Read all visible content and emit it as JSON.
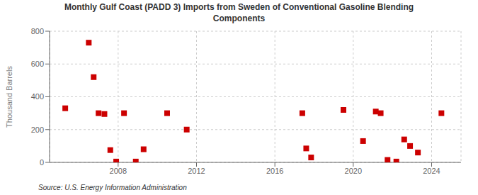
{
  "chart_data": {
    "type": "scatter",
    "title": "Monthly Gulf Coast (PADD 3) Imports from Sweden of Conventional Gasoline Blending\nComponents",
    "ylabel": "Thousand Barrels",
    "annotations": [
      "Source: U.S. Energy Information Administration"
    ],
    "x": [
      2005.3,
      2006.5,
      2006.75,
      2007.0,
      2007.3,
      2007.6,
      2007.9,
      2008.3,
      2008.9,
      2009.3,
      2010.5,
      2011.5,
      2017.4,
      2017.6,
      2017.85,
      2019.5,
      2020.5,
      2021.15,
      2021.4,
      2021.75,
      2022.2,
      2022.6,
      2022.9,
      2023.3,
      2024.5
    ],
    "values": [
      330,
      730,
      520,
      300,
      295,
      75,
      5,
      300,
      5,
      80,
      300,
      200,
      300,
      85,
      30,
      320,
      130,
      310,
      300,
      15,
      5,
      140,
      100,
      60,
      300
    ],
    "color": "#cc0000",
    "marker": "square",
    "xlim": [
      2004.5,
      2025.5
    ],
    "xticks": [
      2008,
      2012,
      2016,
      2020,
      2024
    ],
    "ylim": [
      0,
      800
    ],
    "yticks": [
      0,
      200,
      400,
      600,
      800
    ],
    "grid": true
  }
}
